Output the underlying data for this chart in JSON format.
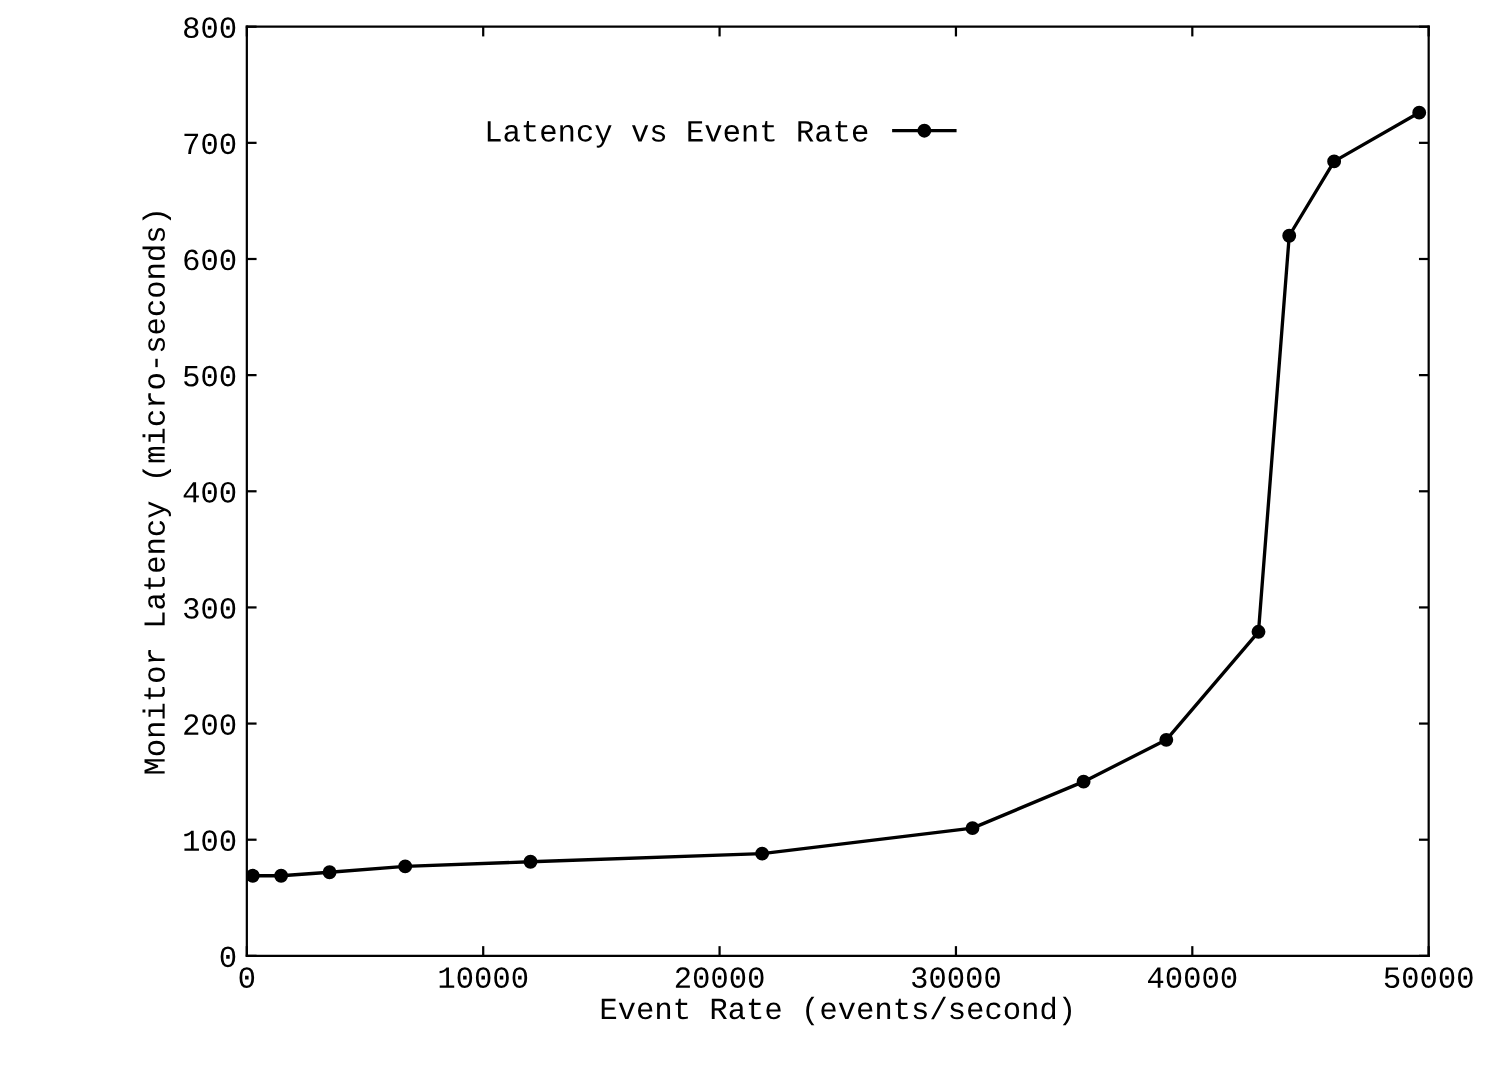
{
  "chart_data": {
    "type": "line",
    "xlabel": "Event Rate (events/second)",
    "ylabel": "Monitor Latency (micro-seconds)",
    "x": [
      250,
      1450,
      3500,
      6700,
      12000,
      21800,
      30700,
      35400,
      38900,
      42800,
      44100,
      46000,
      49600
    ],
    "series": [
      {
        "name": "Latency vs Event Rate",
        "color": "#000000",
        "values": [
          69,
          69,
          72,
          77,
          81,
          88,
          110,
          150,
          186,
          279,
          620,
          684,
          726
        ]
      }
    ],
    "xlim": [
      0,
      50000
    ],
    "xticks": [
      0,
      10000,
      20000,
      30000,
      40000,
      50000
    ],
    "ylim": [
      0,
      800
    ],
    "yticks": [
      0,
      100,
      200,
      300,
      400,
      500,
      600,
      700,
      800
    ],
    "marker": "circle",
    "line_style": "solid",
    "legend": "top",
    "grid": false
  }
}
